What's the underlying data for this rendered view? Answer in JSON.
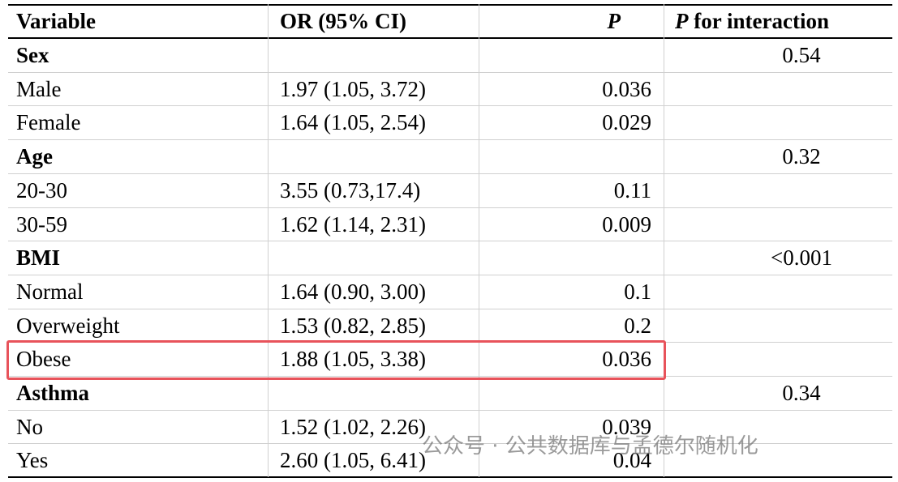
{
  "table": {
    "header": [
      "Variable",
      "OR (95% CI)",
      "P",
      [
        "P",
        " for interaction"
      ]
    ],
    "rows": [
      {
        "label": "Sex",
        "bold": true,
        "p_interaction": "0.54"
      },
      {
        "label": "Male",
        "or": "1.97 (1.05, 3.72)",
        "p": "0.036"
      },
      {
        "label": "Female",
        "or": "1.64 (1.05, 2.54)",
        "p": "0.029"
      },
      {
        "label": "Age",
        "bold": true,
        "p_interaction": "0.32"
      },
      {
        "label": "20-30",
        "or": "3.55 (0.73,17.4)",
        "p": "0.11"
      },
      {
        "label": "30-59",
        "or": "1.62 (1.14, 2.31)",
        "p": "0.009"
      },
      {
        "label": "BMI",
        "bold": true,
        "p_interaction": "<0.001"
      },
      {
        "label": "Normal",
        "or": "1.64 (0.90, 3.00)",
        "p": "0.1"
      },
      {
        "label": "Overweight",
        "or": "1.53 (0.82, 2.85)",
        "p": "0.2"
      },
      {
        "label": "Obese",
        "or": "1.88 (1.05, 3.38)",
        "p": "0.036",
        "highlight": true
      },
      {
        "label": "Asthma",
        "bold": true,
        "p_interaction": "0.34"
      },
      {
        "label": "No",
        "or": "1.52 (1.02, 2.26)",
        "p": "0.039"
      },
      {
        "label": "Yes",
        "or": "2.60 (1.05, 6.41)",
        "p": "0.04"
      }
    ]
  },
  "watermark": "公众号 · 公共数据库与孟德尔随机化"
}
